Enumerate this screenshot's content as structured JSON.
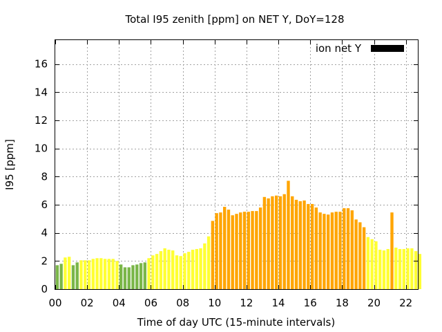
{
  "chart_data": {
    "type": "bar",
    "title": "Total I95 zenith [ppm] on NET Y, DoY=128",
    "xlabel": "Time of day UTC (15-minute intervals)",
    "ylabel": "I95 [ppm]",
    "legend": {
      "label": "ion net Y",
      "color": "#000000",
      "position": "top-right"
    },
    "xlim": [
      0,
      22.75
    ],
    "ylim": [
      0,
      17.7
    ],
    "grid": true,
    "x_ticks": [
      "00",
      "02",
      "04",
      "06",
      "08",
      "10",
      "12",
      "14",
      "16",
      "18",
      "20",
      "22"
    ],
    "y_ticks": [
      "0",
      "2",
      "4",
      "6",
      "8",
      "10",
      "12",
      "14",
      "16"
    ],
    "color_scale": [
      {
        "min": 0,
        "max": 2,
        "color": "#7ab648"
      },
      {
        "min": 2,
        "max": 4,
        "color": "#ffff33"
      },
      {
        "min": 4,
        "max": 99,
        "color": "#ffa500"
      }
    ],
    "interval_hours": 0.25,
    "values": [
      1.7,
      1.8,
      2.25,
      2.3,
      1.7,
      1.9,
      2.05,
      2.05,
      2.05,
      2.15,
      2.2,
      2.2,
      2.15,
      2.15,
      2.15,
      2.0,
      1.75,
      1.55,
      1.55,
      1.7,
      1.75,
      1.85,
      1.9,
      2.2,
      2.4,
      2.5,
      2.7,
      2.9,
      2.8,
      2.75,
      2.4,
      2.35,
      2.55,
      2.65,
      2.8,
      2.85,
      2.9,
      3.25,
      3.75,
      4.85,
      5.4,
      5.45,
      5.85,
      5.65,
      5.25,
      5.35,
      5.45,
      5.5,
      5.5,
      5.55,
      5.55,
      5.8,
      6.55,
      6.45,
      6.6,
      6.65,
      6.6,
      6.75,
      7.7,
      6.6,
      6.35,
      6.25,
      6.3,
      6.05,
      6.05,
      5.8,
      5.45,
      5.35,
      5.3,
      5.45,
      5.5,
      5.5,
      5.75,
      5.75,
      5.6,
      4.95,
      4.75,
      4.4,
      3.7,
      3.55,
      3.4,
      2.8,
      2.75,
      2.85,
      5.45,
      2.95,
      2.85,
      2.85,
      2.9,
      2.9,
      2.7,
      2.5
    ]
  }
}
